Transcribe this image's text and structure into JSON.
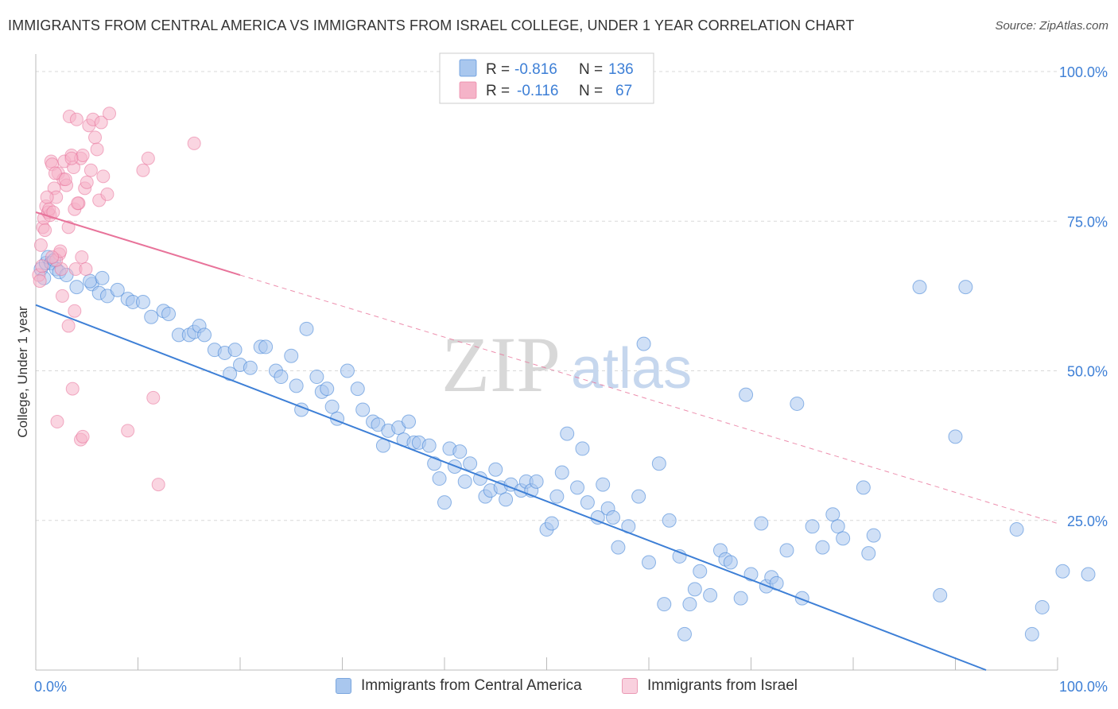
{
  "title": "IMMIGRANTS FROM CENTRAL AMERICA VS IMMIGRANTS FROM ISRAEL COLLEGE, UNDER 1 YEAR CORRELATION CHART",
  "source": "Source: ZipAtlas.com",
  "watermark": {
    "zip": "ZIP",
    "atlas": "atlas"
  },
  "colors": {
    "blue": "#3d7fd6",
    "blue_fill": "#a9c7ee",
    "pink": "#e8739a",
    "pink_fill": "#f5b3c8",
    "axis_text": "#3d7fd6",
    "grid": "#d9d9d9"
  },
  "stats_box": {
    "rows": [
      {
        "r_label": "R =",
        "r_value": "-0.816",
        "n_label": "N =",
        "n_value": "136"
      },
      {
        "r_label": "R =",
        "r_value": "-0.116",
        "n_label": "N =",
        "n_value": "67"
      }
    ]
  },
  "legend": {
    "items": [
      "Immigrants from Central America",
      "Immigrants from Israel"
    ]
  },
  "chart_data": {
    "type": "scatter",
    "title": "IMMIGRANTS FROM CENTRAL AMERICA VS IMMIGRANTS FROM ISRAEL COLLEGE, UNDER 1 YEAR CORRELATION CHART",
    "xlabel": "",
    "ylabel": "College, Under 1 year",
    "xlim": [
      0,
      100
    ],
    "ylim": [
      0,
      102
    ],
    "x_tick_labels": {
      "left": "0.0%",
      "right": "100.0%"
    },
    "y_ticks": [
      {
        "value": 25,
        "label": "25.0%"
      },
      {
        "value": 50,
        "label": "50.0%"
      },
      {
        "value": 75,
        "label": "75.0%"
      },
      {
        "value": 100,
        "label": "100.0%"
      }
    ],
    "grid": true,
    "legend_position": "bottom",
    "series": [
      {
        "name": "Immigrants from Central America",
        "color": "#3d7fd6",
        "trend": {
          "x": [
            0,
            93
          ],
          "y": [
            61.0,
            0.0
          ],
          "style": "solid"
        },
        "points": [
          [
            0.5,
            67
          ],
          [
            0.8,
            65.5
          ],
          [
            1.0,
            68
          ],
          [
            1.2,
            69
          ],
          [
            1.5,
            68
          ],
          [
            1.8,
            68.5
          ],
          [
            2.0,
            67
          ],
          [
            2.3,
            66.5
          ],
          [
            3.0,
            66
          ],
          [
            5.5,
            64.5
          ],
          [
            5.3,
            65
          ],
          [
            4.0,
            64
          ],
          [
            6.5,
            65.5
          ],
          [
            6.2,
            63
          ],
          [
            7.0,
            62.5
          ],
          [
            8.0,
            63.5
          ],
          [
            9.0,
            62
          ],
          [
            9.5,
            61.5
          ],
          [
            10.5,
            61.5
          ],
          [
            11.3,
            59
          ],
          [
            12.5,
            60
          ],
          [
            13.0,
            59.5
          ],
          [
            14.0,
            56
          ],
          [
            15.0,
            56
          ],
          [
            15.5,
            56.5
          ],
          [
            16.0,
            57.5
          ],
          [
            16.5,
            56
          ],
          [
            17.5,
            53.5
          ],
          [
            18.5,
            53
          ],
          [
            19.0,
            49.5
          ],
          [
            19.5,
            53.5
          ],
          [
            20.0,
            51
          ],
          [
            21.0,
            50.5
          ],
          [
            22.0,
            54
          ],
          [
            22.5,
            54
          ],
          [
            23.5,
            50
          ],
          [
            24.0,
            49
          ],
          [
            25.0,
            52.5
          ],
          [
            25.5,
            47.5
          ],
          [
            26.0,
            43.5
          ],
          [
            26.5,
            57
          ],
          [
            27.5,
            49
          ],
          [
            28.0,
            46.5
          ],
          [
            28.5,
            47
          ],
          [
            29.0,
            44
          ],
          [
            29.5,
            42
          ],
          [
            30.5,
            50
          ],
          [
            31.5,
            47
          ],
          [
            32.0,
            43.5
          ],
          [
            33.0,
            41.5
          ],
          [
            33.5,
            41
          ],
          [
            34.0,
            37.5
          ],
          [
            34.5,
            40
          ],
          [
            35.5,
            40.5
          ],
          [
            36.0,
            38.5
          ],
          [
            36.5,
            41.5
          ],
          [
            37.0,
            38
          ],
          [
            37.5,
            38
          ],
          [
            38.5,
            37.5
          ],
          [
            39.0,
            34.5
          ],
          [
            39.5,
            32
          ],
          [
            40.0,
            28
          ],
          [
            40.5,
            37
          ],
          [
            41.0,
            34
          ],
          [
            41.5,
            36.5
          ],
          [
            42.0,
            31.5
          ],
          [
            42.5,
            34.5
          ],
          [
            43.5,
            32
          ],
          [
            44.0,
            29
          ],
          [
            44.5,
            30
          ],
          [
            45.0,
            33.5
          ],
          [
            45.5,
            30.5
          ],
          [
            46.0,
            28.5
          ],
          [
            46.5,
            31
          ],
          [
            47.5,
            30
          ],
          [
            48.0,
            31.5
          ],
          [
            48.5,
            30
          ],
          [
            49.0,
            31.5
          ],
          [
            50.0,
            23.5
          ],
          [
            50.5,
            24.5
          ],
          [
            51.0,
            29
          ],
          [
            51.5,
            33
          ],
          [
            52.0,
            39.5
          ],
          [
            53.0,
            30.5
          ],
          [
            53.5,
            37
          ],
          [
            54.0,
            28
          ],
          [
            55.0,
            25.5
          ],
          [
            55.5,
            31
          ],
          [
            56.0,
            27
          ],
          [
            56.5,
            25.5
          ],
          [
            57.0,
            20.5
          ],
          [
            58.0,
            24
          ],
          [
            59.0,
            29
          ],
          [
            59.5,
            54.5
          ],
          [
            60.0,
            18
          ],
          [
            61.0,
            34.5
          ],
          [
            61.5,
            11
          ],
          [
            62.0,
            25
          ],
          [
            63.0,
            19
          ],
          [
            63.5,
            6
          ],
          [
            64.0,
            11
          ],
          [
            64.5,
            13.5
          ],
          [
            65.0,
            16.5
          ],
          [
            66.0,
            12.5
          ],
          [
            67.0,
            20
          ],
          [
            67.5,
            18.5
          ],
          [
            68.0,
            18
          ],
          [
            69.0,
            12
          ],
          [
            69.5,
            46
          ],
          [
            70.0,
            16
          ],
          [
            71.0,
            24.5
          ],
          [
            71.5,
            14
          ],
          [
            72.0,
            15.5
          ],
          [
            72.5,
            14.5
          ],
          [
            73.5,
            20
          ],
          [
            74.5,
            44.5
          ],
          [
            75.0,
            12
          ],
          [
            76.0,
            24
          ],
          [
            77.0,
            20.5
          ],
          [
            78.0,
            26
          ],
          [
            78.5,
            24
          ],
          [
            79.0,
            22
          ],
          [
            81.0,
            30.5
          ],
          [
            81.5,
            19.5
          ],
          [
            82.0,
            22.5
          ],
          [
            86.5,
            64
          ],
          [
            88.5,
            12.5
          ],
          [
            90.0,
            39
          ],
          [
            91.0,
            64
          ],
          [
            96.0,
            23.5
          ],
          [
            97.5,
            6
          ],
          [
            98.5,
            10.5
          ],
          [
            100.5,
            16.5
          ],
          [
            103.0,
            16
          ]
        ]
      },
      {
        "name": "Immigrants from Israel",
        "color": "#e8739a",
        "trend": {
          "x": [
            0,
            20
          ],
          "y": [
            76.5,
            66.0
          ],
          "style": "solid",
          "extended": {
            "x": [
              20,
              100
            ],
            "y": [
              66.0,
              24.5
            ],
            "style": "dashed"
          }
        },
        "points": [
          [
            0.3,
            66
          ],
          [
            0.5,
            71
          ],
          [
            0.7,
            74
          ],
          [
            0.8,
            75.5
          ],
          [
            1.0,
            77.5
          ],
          [
            1.2,
            76.5
          ],
          [
            1.5,
            85
          ],
          [
            1.6,
            84.5
          ],
          [
            1.8,
            80.5
          ],
          [
            2.0,
            79
          ],
          [
            2.2,
            83
          ],
          [
            2.3,
            69.5
          ],
          [
            2.5,
            67
          ],
          [
            2.7,
            82
          ],
          [
            2.8,
            85
          ],
          [
            3.0,
            81
          ],
          [
            3.2,
            74
          ],
          [
            3.3,
            92.5
          ],
          [
            3.5,
            86
          ],
          [
            3.7,
            84
          ],
          [
            3.8,
            77
          ],
          [
            4.0,
            92
          ],
          [
            4.2,
            78
          ],
          [
            4.4,
            85.5
          ],
          [
            4.6,
            86
          ],
          [
            4.8,
            80.5
          ],
          [
            5.0,
            81.5
          ],
          [
            5.2,
            91
          ],
          [
            5.4,
            83.5
          ],
          [
            5.6,
            92
          ],
          [
            5.8,
            89
          ],
          [
            6.0,
            87
          ],
          [
            6.2,
            78.5
          ],
          [
            6.4,
            91.5
          ],
          [
            6.6,
            82.5
          ],
          [
            7.0,
            79.5
          ],
          [
            7.2,
            93
          ],
          [
            3.5,
            85.5
          ],
          [
            4.1,
            78
          ],
          [
            4.5,
            69
          ],
          [
            2.6,
            62.5
          ],
          [
            3.2,
            57.5
          ],
          [
            3.8,
            60
          ],
          [
            4.4,
            38.5
          ],
          [
            4.6,
            39
          ],
          [
            2.1,
            41.5
          ],
          [
            3.6,
            47
          ],
          [
            9.0,
            40
          ],
          [
            10.5,
            83.5
          ],
          [
            11.0,
            85.5
          ],
          [
            11.5,
            45.5
          ],
          [
            12.0,
            31
          ],
          [
            15.5,
            88
          ],
          [
            2.0,
            68.5
          ],
          [
            1.4,
            76
          ],
          [
            1.1,
            79
          ],
          [
            1.9,
            83
          ],
          [
            2.4,
            70
          ],
          [
            0.6,
            67.5
          ],
          [
            0.9,
            73.5
          ],
          [
            1.3,
            77
          ],
          [
            1.6,
            69
          ],
          [
            3.9,
            67
          ],
          [
            4.9,
            67
          ],
          [
            2.9,
            82
          ],
          [
            1.7,
            76.5
          ],
          [
            0.4,
            65
          ]
        ]
      }
    ]
  }
}
